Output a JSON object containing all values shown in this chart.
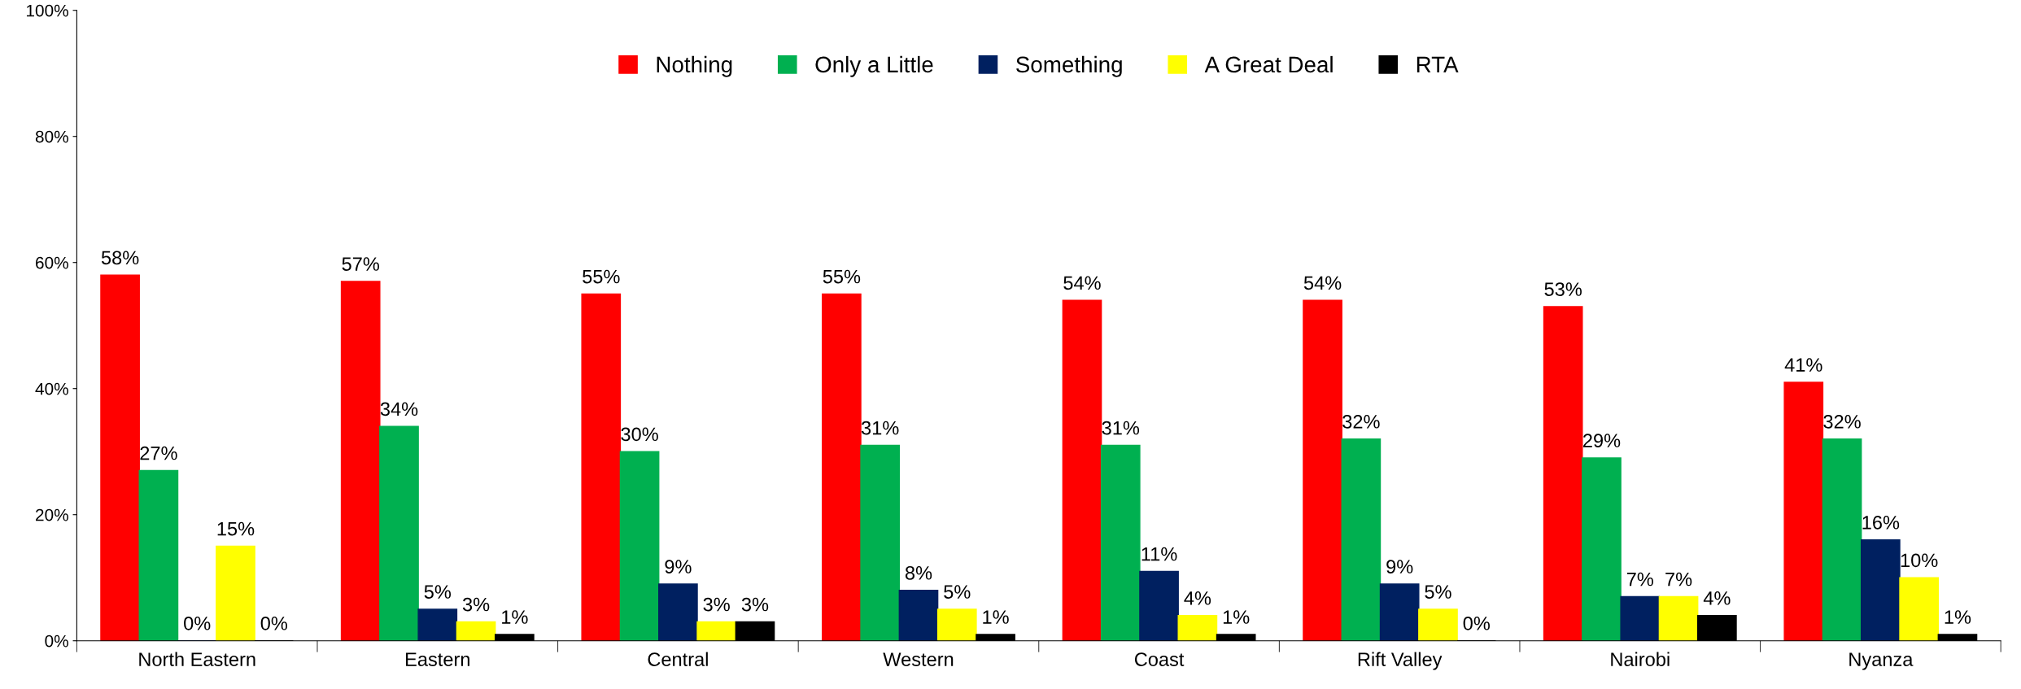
{
  "chart_data": {
    "type": "bar",
    "categories": [
      "North Eastern",
      "Eastern",
      "Central",
      "Western",
      "Coast",
      "Rift Valley",
      "Nairobi",
      "Nyanza"
    ],
    "series": [
      {
        "name": "Nothing",
        "color": "#ff0000",
        "values": [
          58,
          57,
          55,
          55,
          54,
          54,
          53,
          41
        ],
        "value_labels": [
          "58%",
          "57%",
          "55%",
          "55%",
          "54%",
          "54%",
          "53%",
          "41%"
        ]
      },
      {
        "name": "Only a Little",
        "color": "#00b050",
        "values": [
          27,
          34,
          30,
          31,
          31,
          32,
          29,
          32
        ],
        "value_labels": [
          "27%",
          "34%",
          "30%",
          "31%",
          "31%",
          "32%",
          "29%",
          "32%"
        ]
      },
      {
        "name": "Something",
        "color": "#002060",
        "values": [
          0,
          5,
          9,
          8,
          11,
          9,
          7,
          16
        ],
        "value_labels": [
          "0%",
          "5%",
          "9%",
          "8%",
          "11%",
          "9%",
          "7%",
          "16%"
        ]
      },
      {
        "name": "A Great Deal",
        "color": "#ffff00",
        "values": [
          15,
          3,
          3,
          5,
          4,
          5,
          7,
          10
        ],
        "value_labels": [
          "15%",
          "3%",
          "3%",
          "5%",
          "4%",
          "5%",
          "7%",
          "10%"
        ]
      },
      {
        "name": "RTA",
        "color": "#000000",
        "values": [
          0,
          1,
          3,
          1,
          1,
          0,
          4,
          1
        ],
        "value_labels": [
          "0%",
          "1%",
          "3%",
          "1%",
          "1%",
          "0%",
          "4%",
          "1%"
        ]
      }
    ],
    "ylim": [
      0,
      100
    ],
    "yticks": [
      {
        "value": 0,
        "label": "0%"
      },
      {
        "value": 20,
        "label": "20%"
      },
      {
        "value": 40,
        "label": "40%"
      },
      {
        "value": 60,
        "label": "60%"
      },
      {
        "value": 80,
        "label": "80%"
      },
      {
        "value": 100,
        "label": "100%"
      }
    ],
    "grid": false,
    "legend": "top"
  }
}
